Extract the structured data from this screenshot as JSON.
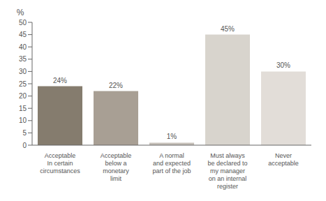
{
  "chart_data": {
    "type": "bar",
    "ylabel": "%",
    "categories": [
      "Acceptable\nIn certain\ncircumstances",
      "Acceptable\nbelow a\nmonetary\nlimit",
      "A normal\nand expected\npart of the job",
      "Must always\nbe declared to\nmy manager\non an internal\nregister",
      "Never\nacceptable"
    ],
    "values": [
      24,
      22,
      1,
      45,
      30
    ],
    "value_labels": [
      "24%",
      "22%",
      "1%",
      "45%",
      "30%"
    ],
    "colors": [
      "#857c6e",
      "#a89f94",
      "#c5bfb8",
      "#d8d4cd",
      "#e2ddd8"
    ],
    "ylim": [
      0,
      50
    ],
    "yticks": [
      0,
      5,
      10,
      15,
      20,
      25,
      30,
      35,
      40,
      45,
      50
    ],
    "grid": false,
    "data_labels": true
  }
}
